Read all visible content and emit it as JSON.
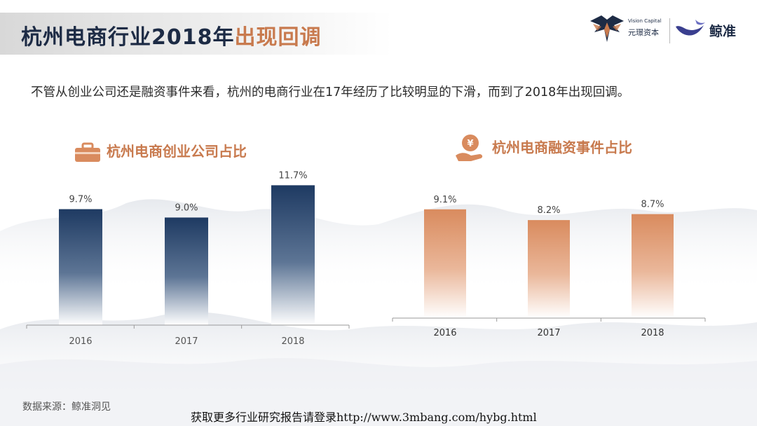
{
  "header": {
    "title_main": "杭州电商行业2018年",
    "title_accent": "出现回调",
    "logo_visioncapital_small": "Vision Capital",
    "logo_visioncapital_cn": "元璟资本",
    "logo_jingzhun": "鲸准"
  },
  "subtitle": "不管从创业公司还是融资事件来看，杭州的电商行业在17年经历了比较明显的下滑，而到了2018年出现回调。",
  "chart_data": [
    {
      "type": "bar",
      "title": "杭州电商创业公司占比",
      "categories": [
        "2016",
        "2017",
        "2018"
      ],
      "values": [
        9.7,
        9.0,
        11.7
      ],
      "value_labels": [
        "9.7%",
        "9.0%",
        "11.7%"
      ],
      "unit": "%",
      "xlabel": "",
      "ylabel": "",
      "color_top": "#1e3a62",
      "color_bottom": "#ffffff"
    },
    {
      "type": "bar",
      "title": "杭州电商融资事件占比",
      "categories": [
        "2016",
        "2017",
        "2018"
      ],
      "values": [
        9.1,
        8.2,
        8.7
      ],
      "value_labels": [
        "9.1%",
        "8.2%",
        "8.7%"
      ],
      "unit": "%",
      "xlabel": "",
      "ylabel": "",
      "color_top": "#d98b5e",
      "color_bottom": "#ffffff"
    }
  ],
  "source": "数据来源：鲸准洞见",
  "footer": "获取更多行业研究报告请登录http://www.3mbang.com/hybg.html",
  "colors": {
    "navy": "#1d2b45",
    "accent": "#c87a4e"
  }
}
